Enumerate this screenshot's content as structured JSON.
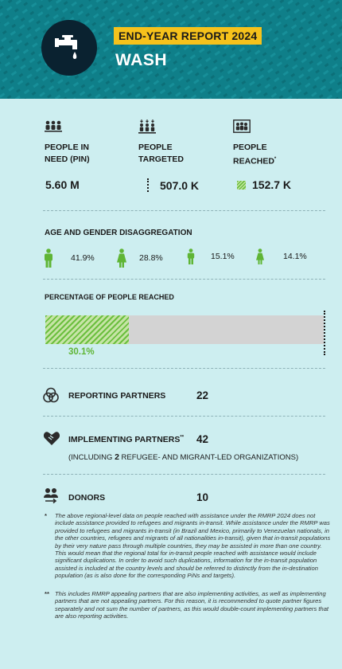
{
  "header": {
    "badge": "END-YEAR REPORT 2024",
    "title": "WASH",
    "icon": "water-tap-icon",
    "colors": {
      "background": "#0f7f89",
      "badge": "#f6c21b",
      "icon_circle": "#0a2230"
    }
  },
  "stats": [
    {
      "icon": "people-in-need-icon",
      "label_line1": "PEOPLE IN",
      "label_line2": "NEED (PIN)",
      "value": "5.60 M"
    },
    {
      "icon": "people-targeted-icon",
      "label_line1": "PEOPLE",
      "label_line2": "TARGETED",
      "value": "507.0 K"
    },
    {
      "icon": "people-reached-icon",
      "label_line1": "PEOPLE",
      "label_line2": "REACHED",
      "label_mark": "*",
      "value": "152.7 K"
    }
  ],
  "age_gender": {
    "title": "AGE AND GENDER DISAGGREGATION",
    "items": [
      {
        "icon": "man-icon",
        "value": "41.9%"
      },
      {
        "icon": "woman-icon",
        "value": "28.8%"
      },
      {
        "icon": "boy-icon",
        "value": "15.1%"
      },
      {
        "icon": "girl-icon",
        "value": "14.1%"
      }
    ]
  },
  "percent_reached": {
    "title": "PERCENTAGE OF PEOPLE REACHED",
    "value": "30.1%",
    "fraction": 0.301,
    "colors": {
      "fill": "#6bbf3e",
      "track": "#d3d3d3"
    }
  },
  "partners": {
    "reporting": {
      "label": "REPORTING PARTNERS",
      "value": "22",
      "icon": "reporting-partners-icon"
    },
    "implementing": {
      "label": "IMPLEMENTING PARTNERS",
      "label_mark": "**",
      "value": "42",
      "icon": "handshake-icon",
      "sub_prefix": "(INCLUDING ",
      "sub_count": "2",
      "sub_suffix": " REFUGEE- AND MIGRANT-LED ORGANIZATIONS)"
    },
    "donors": {
      "label": "DONORS",
      "value": "10",
      "icon": "donors-icon"
    }
  },
  "footnotes": [
    {
      "mark": "*",
      "text": "The above regional-level data on people reached with assistance under the RMRP 2024 does not include assistance provided to refugees and migrants in-transit. While assistance under the RMRP was provided to refugees and migrants in-transit (in Brazil and Mexico, primarily to Venezuelan nationals, in the other countries, refugees and migrants of all nationalities in-transit), given that in-transit populations by their very nature pass through multiple countries, they may be assisted in more than one country. This would mean that the regional total for in-transit people reached with assistance would include significant duplications. In order to avoid such duplications, information for the in-transit population assisted is included at the country levels and should be referred to distinctly from the in-destination population (as is also done for the corresponding PiNs and targets)."
    },
    {
      "mark": "**",
      "text": "This includes RMRP appealing partners that are also implementing activities, as well as implementing partners that are not appealing partners. For this reason, it is recommended to quote partner figures separately and not sum the number of partners, as this would double-count implementing partners that are also reporting activities."
    }
  ]
}
